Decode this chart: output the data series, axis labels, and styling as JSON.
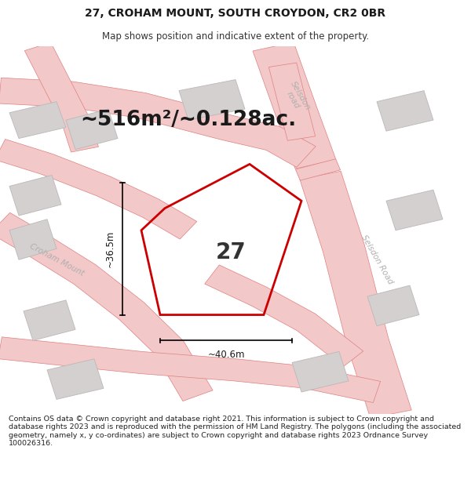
{
  "title": "27, CROHAM MOUNT, SOUTH CROYDON, CR2 0BR",
  "subtitle": "Map shows position and indicative extent of the property.",
  "footer": "Contains OS data © Crown copyright and database right 2021. This information is subject to Crown copyright and database rights 2023 and is reproduced with the permission of HM Land Registry. The polygons (including the associated geometry, namely x, y co-ordinates) are subject to Crown copyright and database rights 2023 Ordnance Survey 100026316.",
  "area_text": "~516m²/~0.128ac.",
  "property_number": "27",
  "dim_width": "~40.6m",
  "dim_height": "~36.5m",
  "map_bg": "#eeecec",
  "road_fill": "#f2c8c8",
  "road_edge": "#e08080",
  "building_fill": "#d4d0d0",
  "building_edge": "#bbb8b8",
  "property_edge": "#cc0000",
  "title_fontsize": 10,
  "subtitle_fontsize": 8.5,
  "area_fontsize": 19,
  "number_fontsize": 20,
  "footer_fontsize": 6.8,
  "dim_fontsize": 8.5,
  "road_label_fontsize": 7.5
}
